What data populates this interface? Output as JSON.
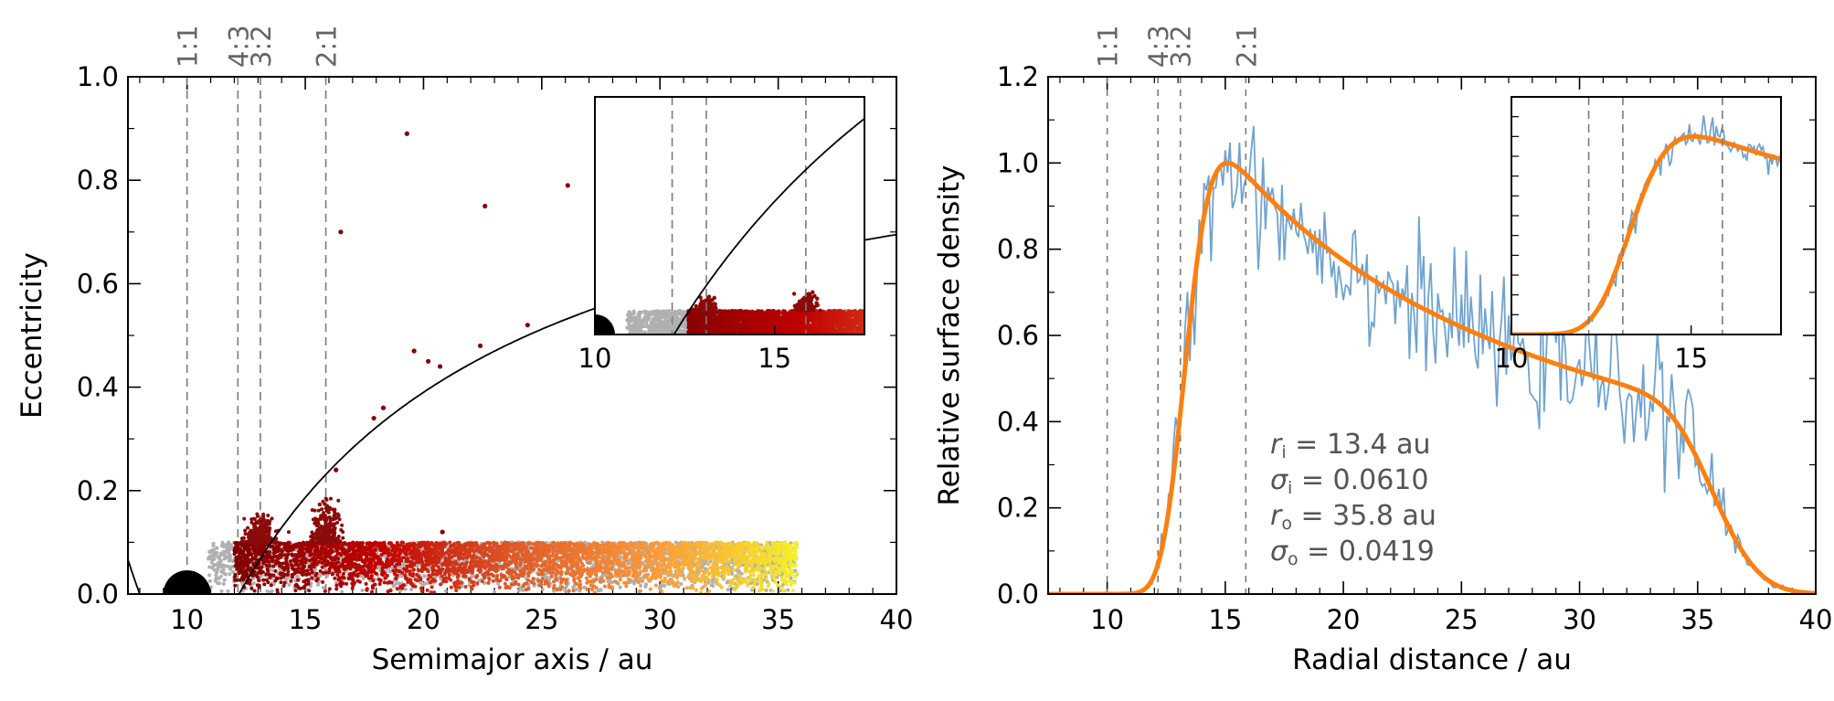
{
  "chart_data": [
    {
      "type": "scatter",
      "xlabel": "Semimajor axis / au",
      "ylabel": "Eccentricity",
      "xlim": [
        7.5,
        40
      ],
      "ylim": [
        0,
        1
      ],
      "xticks": [
        10,
        15,
        20,
        25,
        30,
        35,
        40
      ],
      "yticks": [
        0.0,
        0.2,
        0.4,
        0.6,
        0.8,
        1.0
      ],
      "x_tick_labels": [
        "10",
        "15",
        "20",
        "25",
        "30",
        "35",
        "40"
      ],
      "y_tick_labels": [
        "0.0",
        "0.2",
        "0.4",
        "0.6",
        "0.8",
        "1.0"
      ],
      "resonances": [
        {
          "label": "1:1",
          "a": 10.0
        },
        {
          "label": "4:3",
          "a": 12.15
        },
        {
          "label": "3:2",
          "a": 13.1
        },
        {
          "label": "2:1",
          "a": 15.87
        }
      ],
      "planet": {
        "a": 10.0,
        "e": 0.0,
        "color": "#000000"
      },
      "initial_disc": {
        "a_range": [
          10.9,
          35.8
        ],
        "e_range": [
          0,
          0.1
        ],
        "color": "#b0b0b0"
      },
      "perturbed_particles": {
        "a_range": [
          12.0,
          35.8
        ],
        "e_max": 0.1,
        "color_scale": [
          "#800000",
          "#c00000",
          "#e05a28",
          "#ff9a36",
          "#f4f02a"
        ]
      },
      "resonance_spikes": [
        {
          "a": 13.1,
          "e_max": 0.16
        },
        {
          "a": 15.87,
          "e_max": 0.19
        }
      ],
      "scattered_points": [
        {
          "a": 19.3,
          "e": 0.89
        },
        {
          "a": 26.1,
          "e": 0.79
        },
        {
          "a": 22.6,
          "e": 0.75
        },
        {
          "a": 16.5,
          "e": 0.7
        },
        {
          "a": 24.4,
          "e": 0.52
        },
        {
          "a": 19.6,
          "e": 0.47
        },
        {
          "a": 20.2,
          "e": 0.45
        },
        {
          "a": 20.7,
          "e": 0.44
        },
        {
          "a": 22.4,
          "e": 0.48
        },
        {
          "a": 18.3,
          "e": 0.36
        },
        {
          "a": 17.9,
          "e": 0.34
        },
        {
          "a": 16.3,
          "e": 0.24
        },
        {
          "a": 20.8,
          "e": 0.12
        },
        {
          "a": 38.5,
          "e": 0.7
        }
      ],
      "curve": {
        "type": "pericentre at 12.2 au",
        "q": 12.2,
        "color": "#000000"
      },
      "inset": {
        "xlim": [
          10,
          17.5
        ],
        "x_tick_labels": [
          "10",
          "15"
        ],
        "xticks": [
          10,
          15
        ],
        "e_max": 1.0
      }
    },
    {
      "type": "line",
      "xlabel": "Radial distance / au",
      "ylabel": "Relative surface density",
      "xlim": [
        7.5,
        40
      ],
      "ylim": [
        0,
        1.2
      ],
      "xticks": [
        10,
        15,
        20,
        25,
        30,
        35,
        40
      ],
      "yticks": [
        0.0,
        0.2,
        0.4,
        0.6,
        0.8,
        1.0,
        1.2
      ],
      "x_tick_labels": [
        "10",
        "15",
        "20",
        "25",
        "30",
        "35",
        "40"
      ],
      "y_tick_labels": [
        "0.0",
        "0.2",
        "0.4",
        "0.6",
        "0.8",
        "1.0",
        "1.2"
      ],
      "resonances": [
        {
          "label": "1:1",
          "a": 10.0
        },
        {
          "label": "4:3",
          "a": 12.15
        },
        {
          "label": "3:2",
          "a": 13.1
        },
        {
          "label": "2:1",
          "a": 15.87
        }
      ],
      "series": [
        {
          "role": "simulated",
          "color": "#6fa3d0",
          "noise": 0.07
        },
        {
          "role": "fit",
          "color": "#ff7f0e",
          "r_i": 13.4,
          "sigma_i": 0.061,
          "r_o": 35.8,
          "sigma_o": 0.0419
        }
      ],
      "annotations": [
        {
          "sym": "r",
          "sub": "i",
          "value": " = 13.4 au"
        },
        {
          "sym": "σ",
          "sub": "i",
          "value": " = 0.0610"
        },
        {
          "sym": "r",
          "sub": "o",
          "value": " = 35.8 au"
        },
        {
          "sym": "σ",
          "sub": "o",
          "value": " = 0.0419"
        }
      ],
      "inset": {
        "xlim": [
          10,
          17.5
        ],
        "x_tick_labels": [
          "10",
          "15"
        ],
        "xticks": [
          10,
          15
        ],
        "ylim": [
          0,
          1.2
        ]
      }
    }
  ]
}
